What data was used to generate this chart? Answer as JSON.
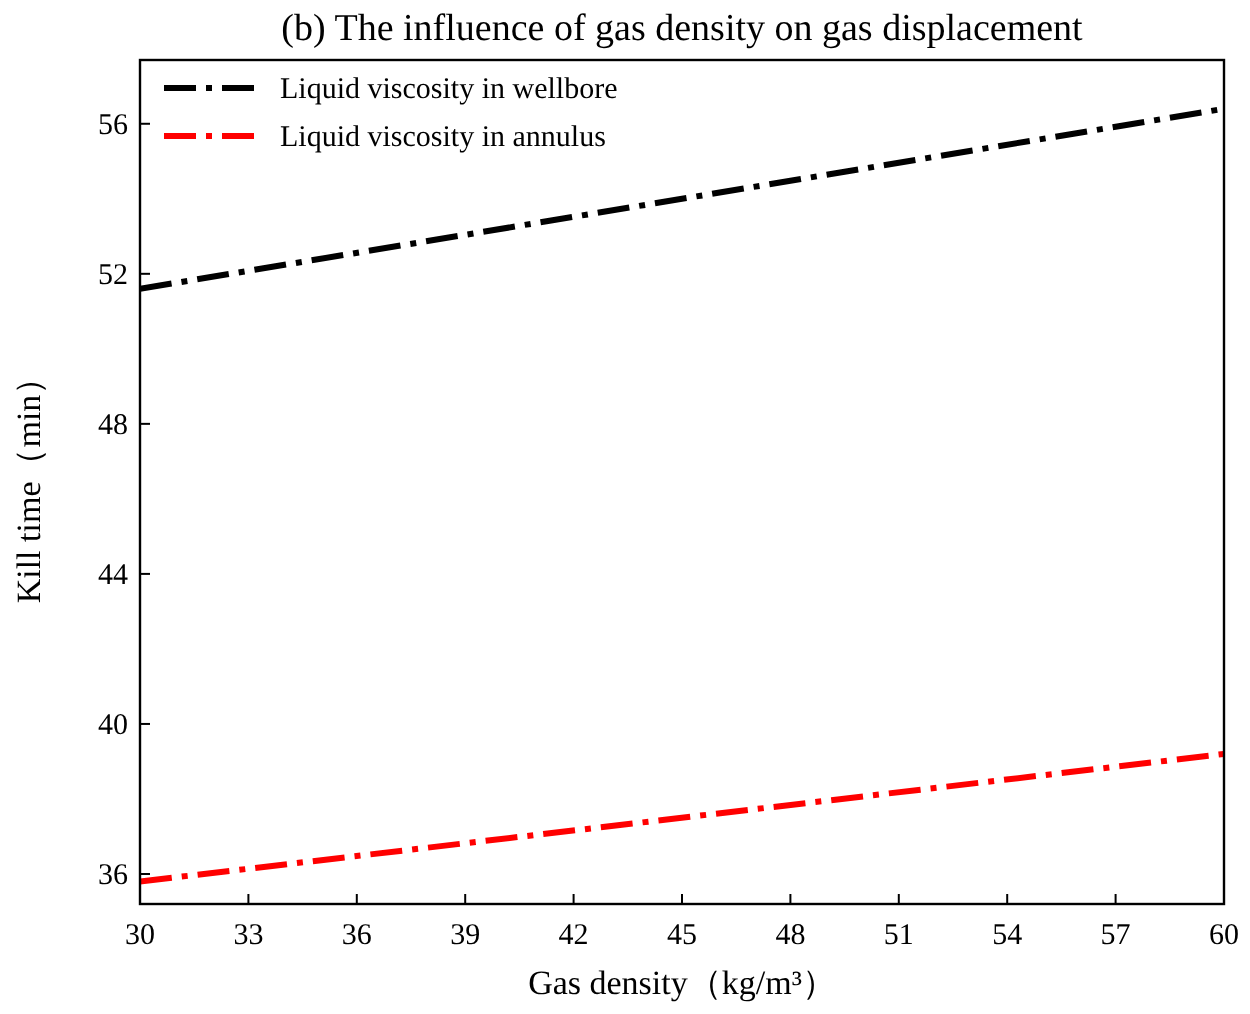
{
  "chart_data": {
    "type": "line",
    "title": "(b) The influence of gas density on gas displacement",
    "xlabel": "Gas density（kg/m³）",
    "ylabel": "Kill time（min）",
    "x": [
      30,
      60
    ],
    "series": [
      {
        "name": "Liquid viscosity in wellbore",
        "color": "#000000",
        "values": [
          51.6,
          56.4
        ]
      },
      {
        "name": "Liquid viscosity in annulus",
        "color": "#ff0000",
        "values": [
          35.8,
          39.2
        ]
      }
    ],
    "xlim": [
      30,
      60
    ],
    "xticks": [
      30,
      33,
      36,
      39,
      42,
      45,
      48,
      51,
      54,
      57,
      60
    ],
    "ylim": [
      35.2,
      57.7
    ],
    "yticks": [
      36,
      40,
      44,
      48,
      52,
      56
    ],
    "line_style": "dashed",
    "legend": "top left",
    "grid": false
  }
}
